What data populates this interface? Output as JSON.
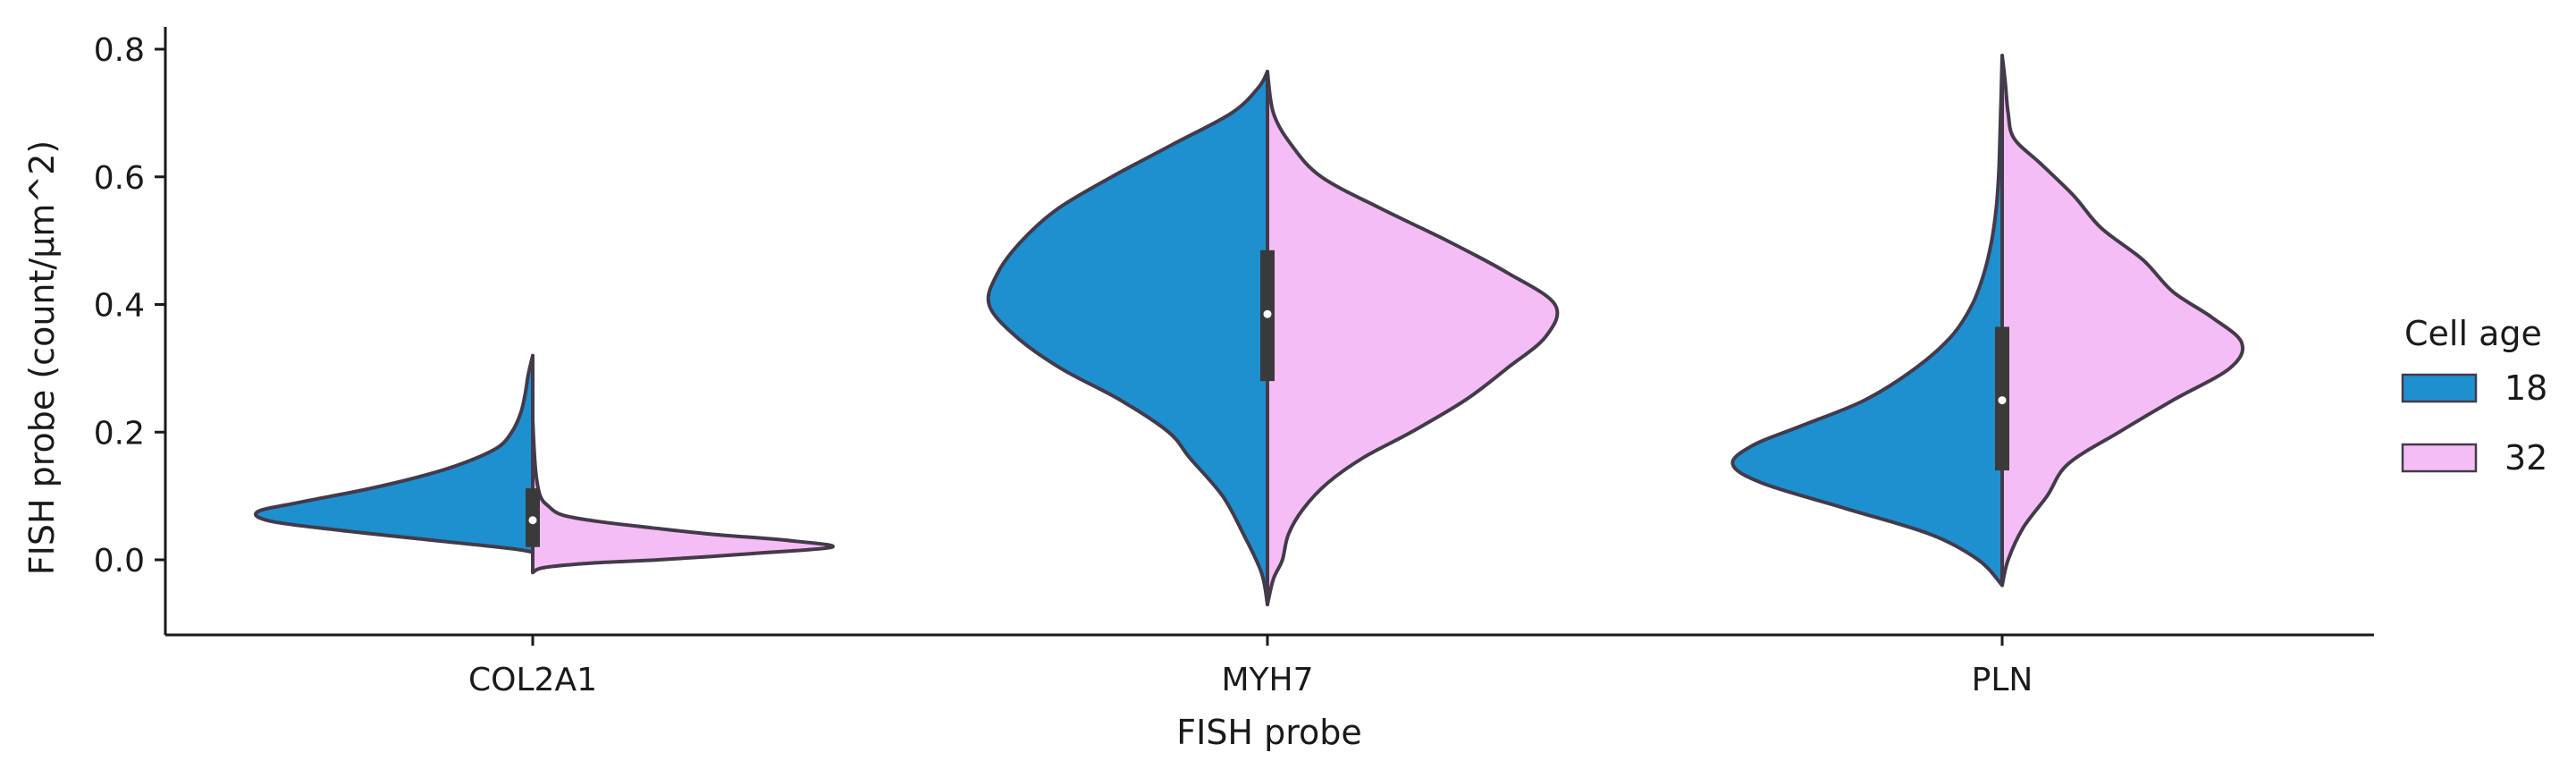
{
  "chart_data": {
    "type": "violin",
    "xlabel": "FISH probe",
    "ylabel": "FISH probe (count/μm^2)",
    "categories": [
      "COL2A1",
      "MYH7",
      "PLN"
    ],
    "ylim": [
      -0.115,
      0.835
    ],
    "yticks": [
      "0.0",
      "0.2",
      "0.4",
      "0.6",
      "0.8"
    ],
    "split": true,
    "legend": {
      "title": "Cell age",
      "placement": "right",
      "entries": [
        {
          "label": "18",
          "color": "#1e90d0"
        },
        {
          "label": "32",
          "color": "#f5bdf5"
        }
      ]
    },
    "series": [
      {
        "name": "18",
        "color": "#1e90d0",
        "side": "left",
        "violins": [
          {
            "category": "COL2A1",
            "profile": [
              [
                0.012,
                0.0
              ],
              [
                0.018,
                0.08
              ],
              [
                0.03,
                0.32
              ],
              [
                0.045,
                0.62
              ],
              [
                0.06,
                0.87
              ],
              [
                0.075,
                0.92
              ],
              [
                0.09,
                0.78
              ],
              [
                0.11,
                0.56
              ],
              [
                0.13,
                0.38
              ],
              [
                0.15,
                0.24
              ],
              [
                0.175,
                0.12
              ],
              [
                0.2,
                0.07
              ],
              [
                0.23,
                0.04
              ],
              [
                0.26,
                0.025
              ],
              [
                0.29,
                0.015
              ],
              [
                0.32,
                0.0
              ]
            ]
          },
          {
            "category": "MYH7",
            "profile": [
              [
                -0.07,
                0.0
              ],
              [
                -0.02,
                0.02
              ],
              [
                0.04,
                0.08
              ],
              [
                0.1,
                0.15
              ],
              [
                0.16,
                0.26
              ],
              [
                0.2,
                0.33
              ],
              [
                0.25,
                0.49
              ],
              [
                0.3,
                0.69
              ],
              [
                0.35,
                0.84
              ],
              [
                0.4,
                0.93
              ],
              [
                0.45,
                0.9
              ],
              [
                0.5,
                0.82
              ],
              [
                0.55,
                0.7
              ],
              [
                0.6,
                0.52
              ],
              [
                0.65,
                0.32
              ],
              [
                0.7,
                0.12
              ],
              [
                0.74,
                0.03
              ],
              [
                0.765,
                0.0
              ]
            ]
          },
          {
            "category": "PLN",
            "profile": [
              [
                -0.04,
                0.0
              ],
              [
                0.0,
                0.08
              ],
              [
                0.04,
                0.24
              ],
              [
                0.08,
                0.52
              ],
              [
                0.12,
                0.8
              ],
              [
                0.15,
                0.9
              ],
              [
                0.18,
                0.83
              ],
              [
                0.21,
                0.67
              ],
              [
                0.25,
                0.46
              ],
              [
                0.3,
                0.29
              ],
              [
                0.35,
                0.17
              ],
              [
                0.4,
                0.1
              ],
              [
                0.45,
                0.06
              ],
              [
                0.5,
                0.035
              ],
              [
                0.55,
                0.02
              ],
              [
                0.6,
                0.012
              ],
              [
                0.65,
                0.008
              ],
              [
                0.7,
                0.005
              ],
              [
                0.75,
                0.002
              ],
              [
                0.79,
                0.0
              ]
            ]
          }
        ]
      },
      {
        "name": "32",
        "color": "#f5bdf5",
        "side": "right",
        "violins": [
          {
            "category": "COL2A1",
            "profile": [
              [
                -0.02,
                0.0
              ],
              [
                -0.012,
                0.04
              ],
              [
                -0.005,
                0.2
              ],
              [
                0.0,
                0.42
              ],
              [
                0.01,
                0.74
              ],
              [
                0.02,
                1.0
              ],
              [
                0.03,
                0.86
              ],
              [
                0.04,
                0.6
              ],
              [
                0.05,
                0.4
              ],
              [
                0.06,
                0.22
              ],
              [
                0.07,
                0.1
              ],
              [
                0.085,
                0.05
              ],
              [
                0.1,
                0.025
              ],
              [
                0.13,
                0.012
              ],
              [
                0.17,
                0.005
              ],
              [
                0.22,
                0.0
              ]
            ]
          },
          {
            "category": "MYH7",
            "profile": [
              [
                -0.07,
                0.0
              ],
              [
                -0.03,
                0.02
              ],
              [
                0.0,
                0.05
              ],
              [
                0.04,
                0.07
              ],
              [
                0.08,
                0.12
              ],
              [
                0.12,
                0.2
              ],
              [
                0.16,
                0.32
              ],
              [
                0.2,
                0.48
              ],
              [
                0.25,
                0.66
              ],
              [
                0.3,
                0.8
              ],
              [
                0.35,
                0.93
              ],
              [
                0.4,
                0.96
              ],
              [
                0.45,
                0.8
              ],
              [
                0.5,
                0.6
              ],
              [
                0.55,
                0.38
              ],
              [
                0.6,
                0.18
              ],
              [
                0.65,
                0.08
              ],
              [
                0.7,
                0.02
              ],
              [
                0.765,
                0.0
              ]
            ]
          },
          {
            "category": "PLN",
            "profile": [
              [
                -0.04,
                0.0
              ],
              [
                0.0,
                0.02
              ],
              [
                0.05,
                0.07
              ],
              [
                0.1,
                0.15
              ],
              [
                0.15,
                0.22
              ],
              [
                0.2,
                0.39
              ],
              [
                0.25,
                0.57
              ],
              [
                0.3,
                0.76
              ],
              [
                0.34,
                0.8
              ],
              [
                0.38,
                0.7
              ],
              [
                0.42,
                0.57
              ],
              [
                0.47,
                0.47
              ],
              [
                0.52,
                0.33
              ],
              [
                0.57,
                0.24
              ],
              [
                0.62,
                0.13
              ],
              [
                0.66,
                0.04
              ],
              [
                0.7,
                0.02
              ],
              [
                0.75,
                0.01
              ],
              [
                0.79,
                0.0
              ]
            ]
          }
        ]
      }
    ],
    "boxes": [
      {
        "category": "COL2A1",
        "q1": 0.02,
        "median": 0.062,
        "q3": 0.112,
        "whisker_low": -0.02,
        "whisker_high": 0.32
      },
      {
        "category": "MYH7",
        "q1": 0.28,
        "median": 0.385,
        "q3": 0.485,
        "whisker_low": -0.07,
        "whisker_high": 0.765
      },
      {
        "category": "PLN",
        "q1": 0.14,
        "median": 0.25,
        "q3": 0.365,
        "whisker_low": -0.04,
        "whisker_high": 0.79
      }
    ]
  }
}
